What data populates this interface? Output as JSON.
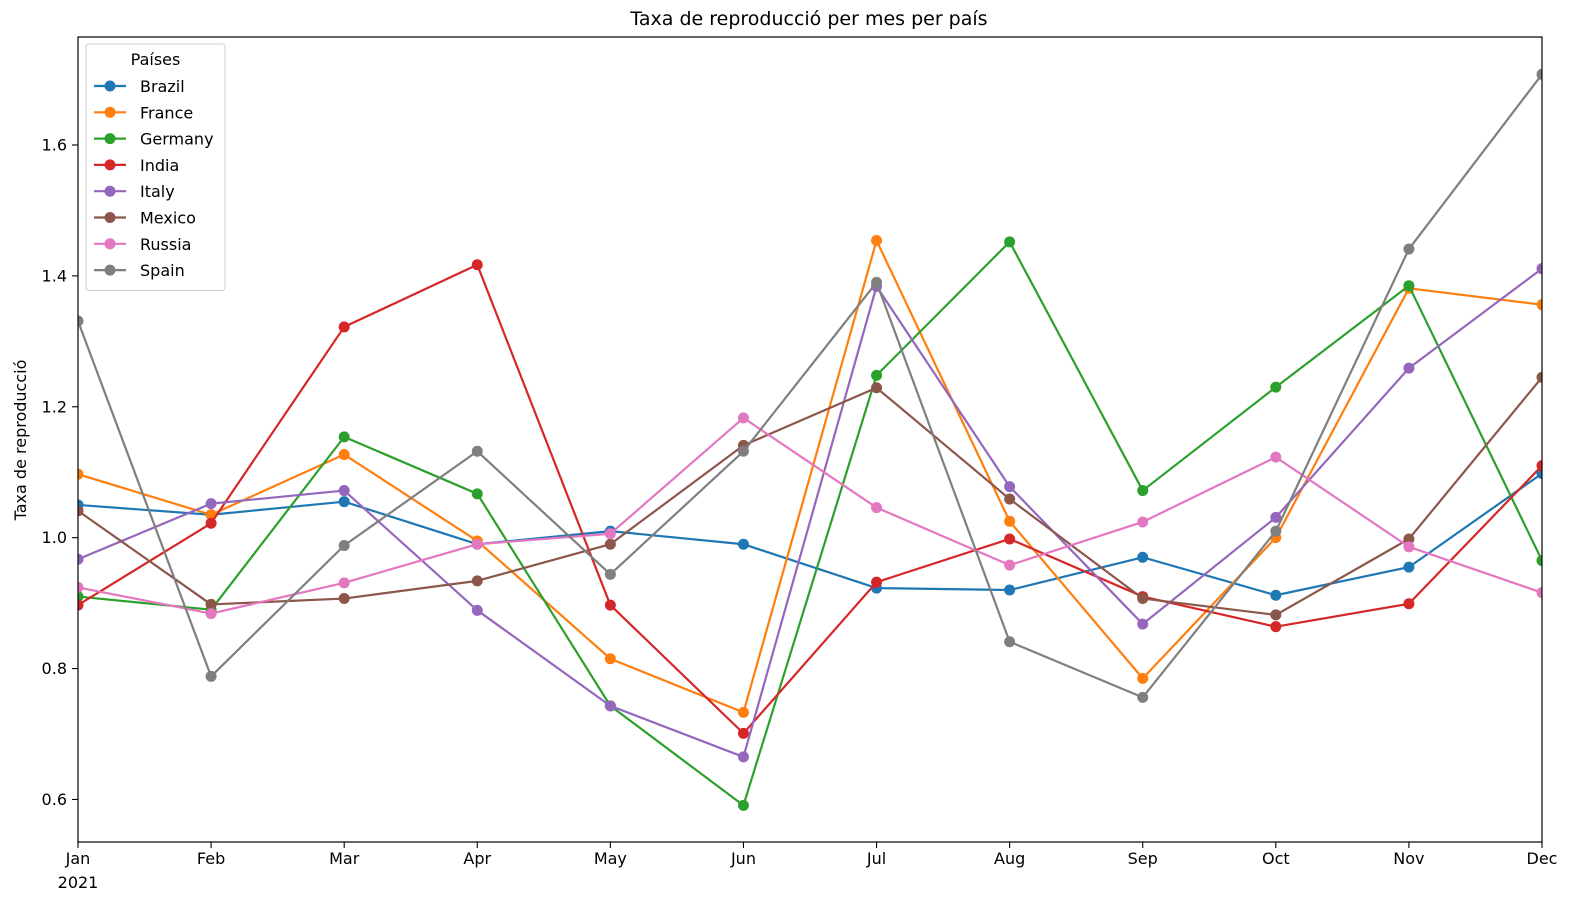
{
  "chart_data": {
    "type": "line",
    "title": "Taxa de reproducció per mes per país",
    "xlabel": "",
    "ylabel": "Taxa de reproducció",
    "x": [
      "Jan",
      "Feb",
      "Mar",
      "Apr",
      "May",
      "Jun",
      "Jul",
      "Aug",
      "Sep",
      "Oct",
      "Nov",
      "Dec"
    ],
    "x_year_label": "2021",
    "ylim": [
      0.535,
      1.765
    ],
    "yticks": [
      0.6,
      0.8,
      1.0,
      1.2,
      1.4,
      1.6
    ],
    "ytick_labels": [
      "0.6",
      "0.8",
      "1.0",
      "1.2",
      "1.4",
      "1.6"
    ],
    "grid": false,
    "legend": {
      "title": "Países",
      "position": "top-left"
    },
    "series": [
      {
        "name": "Brazil",
        "color": "#1f77b4",
        "values": [
          1.05,
          1.035,
          1.055,
          0.99,
          1.01,
          0.99,
          0.923,
          0.92,
          0.97,
          0.912,
          0.955,
          1.098
        ]
      },
      {
        "name": "France",
        "color": "#ff7f0e",
        "values": [
          1.097,
          1.035,
          1.127,
          0.995,
          0.815,
          0.733,
          1.454,
          1.025,
          0.785,
          1.0,
          1.381,
          1.356
        ]
      },
      {
        "name": "Germany",
        "color": "#2ca02c",
        "values": [
          0.91,
          0.89,
          1.154,
          1.067,
          0.743,
          0.591,
          1.248,
          1.452,
          1.072,
          1.23,
          1.385,
          0.965
        ]
      },
      {
        "name": "India",
        "color": "#d62728",
        "values": [
          0.897,
          1.022,
          1.322,
          1.417,
          0.897,
          0.701,
          0.932,
          0.998,
          0.91,
          0.864,
          0.899,
          1.11
        ]
      },
      {
        "name": "Italy",
        "color": "#9467bd",
        "values": [
          0.967,
          1.052,
          1.072,
          0.889,
          0.743,
          0.665,
          1.384,
          1.078,
          0.868,
          1.031,
          1.259,
          1.411
        ]
      },
      {
        "name": "Mexico",
        "color": "#8c564b",
        "values": [
          1.041,
          0.898,
          0.907,
          0.934,
          0.99,
          1.141,
          1.229,
          1.059,
          0.907,
          0.882,
          0.998,
          1.245
        ]
      },
      {
        "name": "Russia",
        "color": "#e377c2",
        "values": [
          0.924,
          0.884,
          0.931,
          0.99,
          1.006,
          1.183,
          1.046,
          0.958,
          1.024,
          1.123,
          0.986,
          0.916
        ]
      },
      {
        "name": "Spain",
        "color": "#7f7f7f",
        "values": [
          1.331,
          0.788,
          0.988,
          1.132,
          0.944,
          1.132,
          1.39,
          0.841,
          0.756,
          1.01,
          1.441,
          1.708
        ]
      }
    ]
  }
}
